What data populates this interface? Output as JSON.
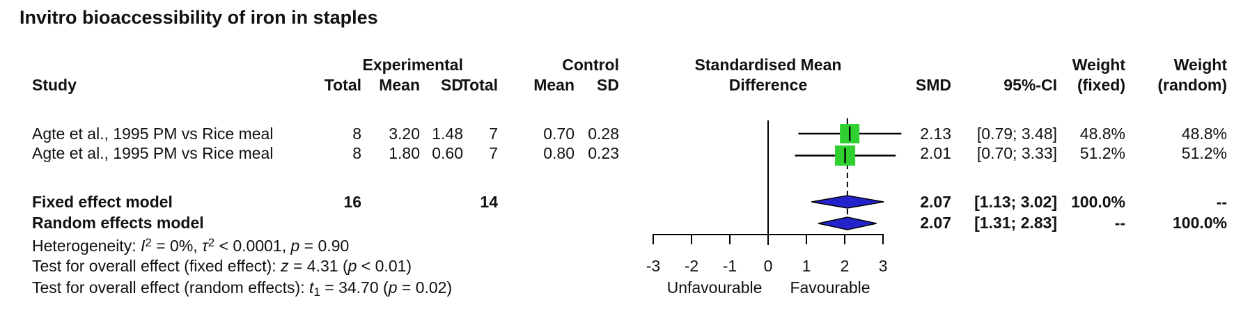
{
  "title": "Invitro bioaccessibility of iron in staples",
  "headers": {
    "study": "Study",
    "experimental": "Experimental",
    "control": "Control",
    "total": "Total",
    "mean": "Mean",
    "sd": "SD",
    "smd_line1": "Standardised Mean",
    "smd_line2": "Difference",
    "smd": "SMD",
    "ci": "95%-CI",
    "weight": "Weight",
    "weight_fixed_sub": "(fixed)",
    "weight_random_sub": "(random)"
  },
  "chart_data": {
    "type": "forest",
    "title": "Invitro bioaccessibility of iron in staples",
    "x_axis": {
      "range": [
        -3,
        3
      ],
      "ticks": [
        -3,
        -2,
        -1,
        0,
        1,
        2,
        3
      ],
      "tick_labels": [
        "-3",
        "-2",
        "-1",
        "0",
        "1",
        "2",
        "3"
      ],
      "zero_line": 0,
      "caption_left": "Unfavourable",
      "caption_right": "Favourable"
    },
    "pooled_line": 2.07,
    "studies": [
      {
        "study": "Agte et al., 1995 PM vs Rice meal",
        "exp_total": "8",
        "exp_mean": "3.20",
        "exp_sd": "1.48",
        "ctrl_total": "7",
        "ctrl_mean": "0.70",
        "ctrl_sd": "0.28",
        "smd": 2.13,
        "ci_low": 0.79,
        "ci_high": 3.48,
        "weight": 0.488,
        "smd_text": "2.13",
        "ci_text": "[0.79; 3.48]",
        "weight_fixed": "48.8%",
        "weight_random": "48.8%"
      },
      {
        "study": "Agte et al., 1995 PM vs Rice meal",
        "exp_total": "8",
        "exp_mean": "1.80",
        "exp_sd": "0.60",
        "ctrl_total": "7",
        "ctrl_mean": "0.80",
        "ctrl_sd": "0.23",
        "smd": 2.01,
        "ci_low": 0.7,
        "ci_high": 3.33,
        "weight": 0.512,
        "smd_text": "2.01",
        "ci_text": "[0.70; 3.33]",
        "weight_fixed": "51.2%",
        "weight_random": "51.2%"
      }
    ],
    "models": [
      {
        "label": "Fixed effect model",
        "exp_total": "16",
        "ctrl_total": "14",
        "smd": 2.07,
        "ci_low": 1.13,
        "ci_high": 3.02,
        "smd_text": "2.07",
        "ci_text": "[1.13; 3.02]",
        "weight_fixed": "100.0%",
        "weight_random": "--"
      },
      {
        "label": "Random effects model",
        "exp_total": "",
        "ctrl_total": "",
        "smd": 2.07,
        "ci_low": 1.31,
        "ci_high": 2.83,
        "smd_text": "2.07",
        "ci_text": "[1.31; 2.83]",
        "weight_fixed": "--",
        "weight_random": "100.0%"
      }
    ]
  },
  "stats": {
    "heterogeneity": [
      "Heterogeneity: ",
      "I",
      "2",
      " = 0%, ",
      "τ",
      "2",
      " < 0.0001, ",
      "p",
      " = 0.90"
    ],
    "test_fixed": [
      "Test for overall effect (fixed effect): ",
      "z",
      " = 4.31 (",
      "p",
      " < 0.01)"
    ],
    "test_random": [
      "Test for overall effect (random effects): ",
      "t",
      "1",
      " = 34.70 (",
      "p",
      " = 0.02)"
    ]
  },
  "colors": {
    "square": "#30D030",
    "diamond": "#2323CC",
    "line": "#000000"
  }
}
